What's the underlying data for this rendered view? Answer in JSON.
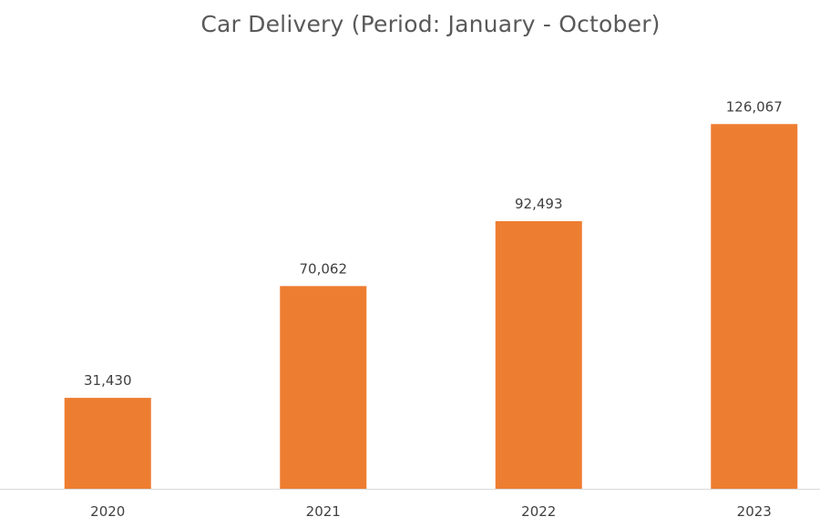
{
  "chart_data": {
    "type": "bar",
    "title": "Car Delivery (Period: January - October)",
    "xlabel": "",
    "ylabel": "",
    "categories": [
      "2020",
      "2021",
      "2022",
      "2023"
    ],
    "values": [
      31430,
      70062,
      92493,
      126067
    ],
    "data_labels": [
      "31,430",
      "70,062",
      "92,493",
      "126,067"
    ],
    "ylim": [
      0,
      140000
    ],
    "grid": false,
    "legend": "none",
    "bar_color": "#ED7D31",
    "axis_color": "#D9D9D9"
  }
}
